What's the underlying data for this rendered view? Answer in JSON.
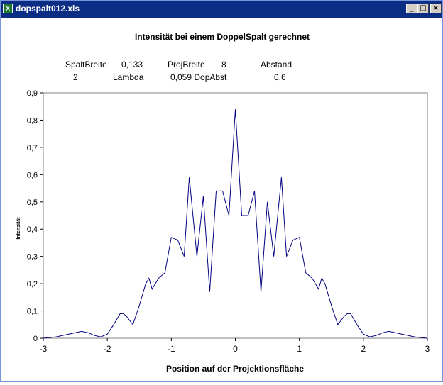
{
  "window": {
    "title": "dopspalt012.xls",
    "icon": "excel-icon",
    "buttons": {
      "minimize": "_",
      "maximize": "□",
      "close": "×"
    }
  },
  "params": {
    "row1": [
      "SpaltBreite",
      "0,133",
      "ProjBreite",
      "8",
      "Abstand"
    ],
    "row2": [
      "2",
      "Lambda",
      "0,059 DopAbst",
      "0,6"
    ]
  },
  "chart_data": {
    "type": "line",
    "title": "Intensität bei einem DoppelSpalt gerechnet",
    "xlabel": "Position auf der Projektionsfläche",
    "ylabel": "Intensität",
    "xlim": [
      -3,
      3
    ],
    "ylim": [
      0,
      0.9
    ],
    "xticks": [
      "-3",
      "-2",
      "-1",
      "0",
      "1",
      "2",
      "3"
    ],
    "yticks": [
      "0",
      "0,1",
      "0,2",
      "0,3",
      "0,4",
      "0,5",
      "0,6",
      "0,7",
      "0,8",
      "0,9"
    ],
    "grid": false,
    "color": "#000080",
    "series": [
      {
        "x": [
          -3.0,
          -2.8,
          -2.6,
          -2.5,
          -2.4,
          -2.3,
          -2.2,
          -2.1,
          -2.0,
          -1.9,
          -1.8,
          -1.75,
          -1.7,
          -1.6,
          -1.5,
          -1.4,
          -1.35,
          -1.3,
          -1.2,
          -1.1,
          -1.0,
          -0.9,
          -0.8,
          -0.72,
          -0.6,
          -0.5,
          -0.4,
          -0.3,
          -0.2,
          -0.1,
          0.0,
          0.1,
          0.2,
          0.3,
          0.4,
          0.5,
          0.6,
          0.72,
          0.8,
          0.9,
          1.0,
          1.1,
          1.2,
          1.3,
          1.35,
          1.4,
          1.5,
          1.6,
          1.7,
          1.75,
          1.8,
          1.9,
          2.0,
          2.1,
          2.2,
          2.3,
          2.4,
          2.5,
          2.6,
          2.8,
          3.0
        ],
        "y": [
          0.0,
          0.005,
          0.015,
          0.02,
          0.025,
          0.02,
          0.01,
          0.005,
          0.015,
          0.05,
          0.09,
          0.09,
          0.08,
          0.05,
          0.12,
          0.2,
          0.22,
          0.18,
          0.22,
          0.24,
          0.37,
          0.36,
          0.3,
          0.59,
          0.3,
          0.52,
          0.17,
          0.54,
          0.54,
          0.45,
          0.84,
          0.45,
          0.45,
          0.54,
          0.17,
          0.5,
          0.3,
          0.59,
          0.3,
          0.36,
          0.37,
          0.24,
          0.22,
          0.18,
          0.22,
          0.2,
          0.12,
          0.05,
          0.08,
          0.09,
          0.09,
          0.05,
          0.015,
          0.005,
          0.01,
          0.02,
          0.025,
          0.02,
          0.015,
          0.005,
          0.0
        ]
      }
    ]
  }
}
